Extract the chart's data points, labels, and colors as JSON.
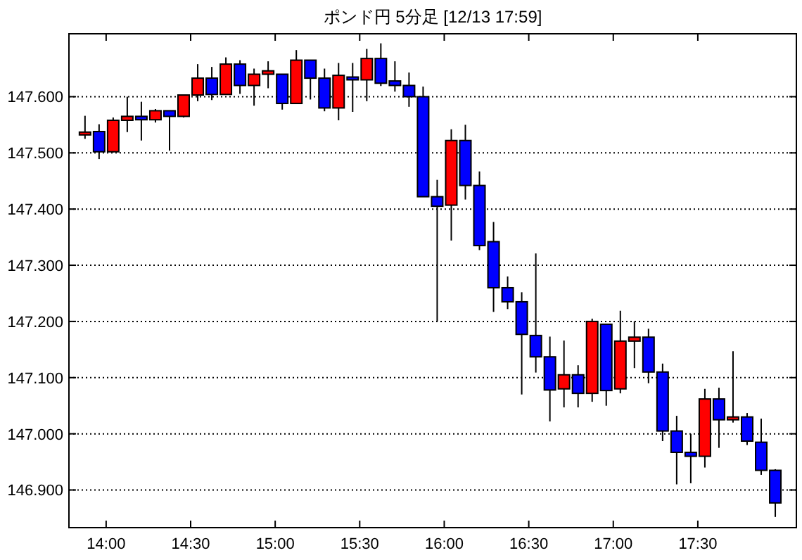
{
  "chart_data": {
    "type": "candlestick",
    "title": "ポンド円 5分足 [12/13 17:59]",
    "x": [
      13.875,
      13.9583,
      14.0417,
      14.125,
      14.2083,
      14.2917,
      14.375,
      14.4583,
      14.5417,
      14.625,
      14.7083,
      14.7917,
      14.875,
      14.9583,
      15.0417,
      15.125,
      15.2083,
      15.2917,
      15.375,
      15.4583,
      15.5417,
      15.625,
      15.7083,
      15.7917,
      15.875,
      15.9583,
      16.0417,
      16.125,
      16.2083,
      16.2917,
      16.375,
      16.4583,
      16.5417,
      16.625,
      16.7083,
      16.7917,
      16.875,
      16.9583,
      17.0417,
      17.125,
      17.2083,
      17.2917,
      17.375,
      17.4583,
      17.5417,
      17.625,
      17.7083,
      17.7917,
      17.875,
      17.9583
    ],
    "ohlc": [
      [
        147.532,
        147.566,
        147.525,
        147.537
      ],
      [
        147.538,
        147.551,
        147.489,
        147.502
      ],
      [
        147.502,
        147.563,
        147.501,
        147.558
      ],
      [
        147.558,
        147.6,
        147.537,
        147.565
      ],
      [
        147.565,
        147.591,
        147.522,
        147.559
      ],
      [
        147.559,
        147.578,
        147.554,
        147.575
      ],
      [
        147.575,
        147.575,
        147.504,
        147.565
      ],
      [
        147.565,
        147.603,
        147.563,
        147.603
      ],
      [
        147.603,
        147.658,
        147.592,
        147.633
      ],
      [
        147.633,
        147.653,
        147.594,
        147.604
      ],
      [
        147.604,
        147.67,
        147.604,
        147.658
      ],
      [
        147.658,
        147.665,
        147.605,
        147.62
      ],
      [
        147.62,
        147.65,
        147.584,
        147.64
      ],
      [
        147.64,
        147.663,
        147.615,
        147.646
      ],
      [
        147.64,
        147.64,
        147.577,
        147.588
      ],
      [
        147.588,
        147.683,
        147.588,
        147.665
      ],
      [
        147.665,
        147.665,
        147.595,
        147.633
      ],
      [
        147.633,
        147.65,
        147.574,
        147.58
      ],
      [
        147.58,
        147.66,
        147.558,
        147.638
      ],
      [
        147.635,
        147.66,
        147.573,
        147.63
      ],
      [
        147.63,
        147.685,
        147.592,
        147.668
      ],
      [
        147.668,
        147.695,
        147.619,
        147.624
      ],
      [
        147.628,
        147.663,
        147.609,
        147.62
      ],
      [
        147.62,
        147.643,
        147.582,
        147.6
      ],
      [
        147.6,
        147.618,
        147.422,
        147.422
      ],
      [
        147.422,
        147.452,
        147.2,
        147.405
      ],
      [
        147.407,
        147.542,
        147.344,
        147.522
      ],
      [
        147.522,
        147.55,
        147.417,
        147.442
      ],
      [
        147.442,
        147.467,
        147.327,
        147.335
      ],
      [
        147.342,
        147.377,
        147.217,
        147.26
      ],
      [
        147.26,
        147.28,
        147.222,
        147.235
      ],
      [
        147.235,
        147.252,
        147.07,
        147.177
      ],
      [
        147.175,
        147.321,
        147.109,
        147.137
      ],
      [
        147.137,
        147.173,
        147.022,
        147.078
      ],
      [
        147.08,
        147.166,
        147.047,
        147.105
      ],
      [
        147.105,
        147.122,
        147.047,
        147.072
      ],
      [
        147.072,
        147.205,
        147.057,
        147.2
      ],
      [
        147.195,
        147.195,
        147.05,
        147.077
      ],
      [
        147.08,
        147.219,
        147.072,
        147.165
      ],
      [
        147.165,
        147.2,
        147.117,
        147.172
      ],
      [
        147.172,
        147.187,
        147.09,
        147.11
      ],
      [
        147.11,
        147.125,
        146.987,
        147.005
      ],
      [
        147.005,
        147.032,
        146.91,
        146.967
      ],
      [
        146.967,
        147.0,
        146.912,
        146.96
      ],
      [
        146.96,
        147.08,
        146.94,
        147.062
      ],
      [
        147.062,
        147.082,
        146.975,
        147.025
      ],
      [
        147.025,
        147.147,
        147.02,
        147.03
      ],
      [
        147.03,
        147.037,
        146.98,
        146.987
      ],
      [
        146.985,
        147.027,
        146.927,
        146.935
      ],
      [
        146.935,
        146.937,
        146.852,
        146.877
      ]
    ],
    "colors": [
      "#ff0000",
      "#0000ff",
      "#ff0000",
      "#ff0000",
      "#0000ff",
      "#ff0000",
      "#0000ff",
      "#ff0000",
      "#ff0000",
      "#0000ff",
      "#ff0000",
      "#0000ff",
      "#ff0000",
      "#ff0000",
      "#0000ff",
      "#ff0000",
      "#0000ff",
      "#0000ff",
      "#ff0000",
      "#0000ff",
      "#ff0000",
      "#0000ff",
      "#0000ff",
      "#0000ff",
      "#0000ff",
      "#0000ff",
      "#ff0000",
      "#0000ff",
      "#0000ff",
      "#0000ff",
      "#0000ff",
      "#0000ff",
      "#0000ff",
      "#0000ff",
      "#ff0000",
      "#0000ff",
      "#ff0000",
      "#0000ff",
      "#ff0000",
      "#ff0000",
      "#0000ff",
      "#0000ff",
      "#0000ff",
      "#0000ff",
      "#ff0000",
      "#0000ff",
      "#ff0000",
      "#0000ff",
      "#0000ff",
      "#0000ff"
    ],
    "xlim": [
      13.78,
      18.083
    ],
    "xticks": [
      {
        "value": 14,
        "label": "14:00"
      },
      {
        "value": 14.5,
        "label": "14:30"
      },
      {
        "value": 15,
        "label": "15:00"
      },
      {
        "value": 15.5,
        "label": "15:30"
      },
      {
        "value": 16,
        "label": "16:00"
      },
      {
        "value": 16.5,
        "label": "16:30"
      },
      {
        "value": 17,
        "label": "17:00"
      },
      {
        "value": 17.5,
        "label": "17:30"
      }
    ],
    "ylim": [
      146.833,
      147.712
    ],
    "yticks": [
      {
        "value": 146.9,
        "label": "146.900"
      },
      {
        "value": 147,
        "label": "147.000"
      },
      {
        "value": 147.1,
        "label": "147.100"
      },
      {
        "value": 147.2,
        "label": "147.200"
      },
      {
        "value": 147.3,
        "label": "147.300"
      },
      {
        "value": 147.4,
        "label": "147.400"
      },
      {
        "value": 147.5,
        "label": "147.500"
      },
      {
        "value": 147.6,
        "label": "147.600"
      }
    ],
    "grid": "y"
  }
}
